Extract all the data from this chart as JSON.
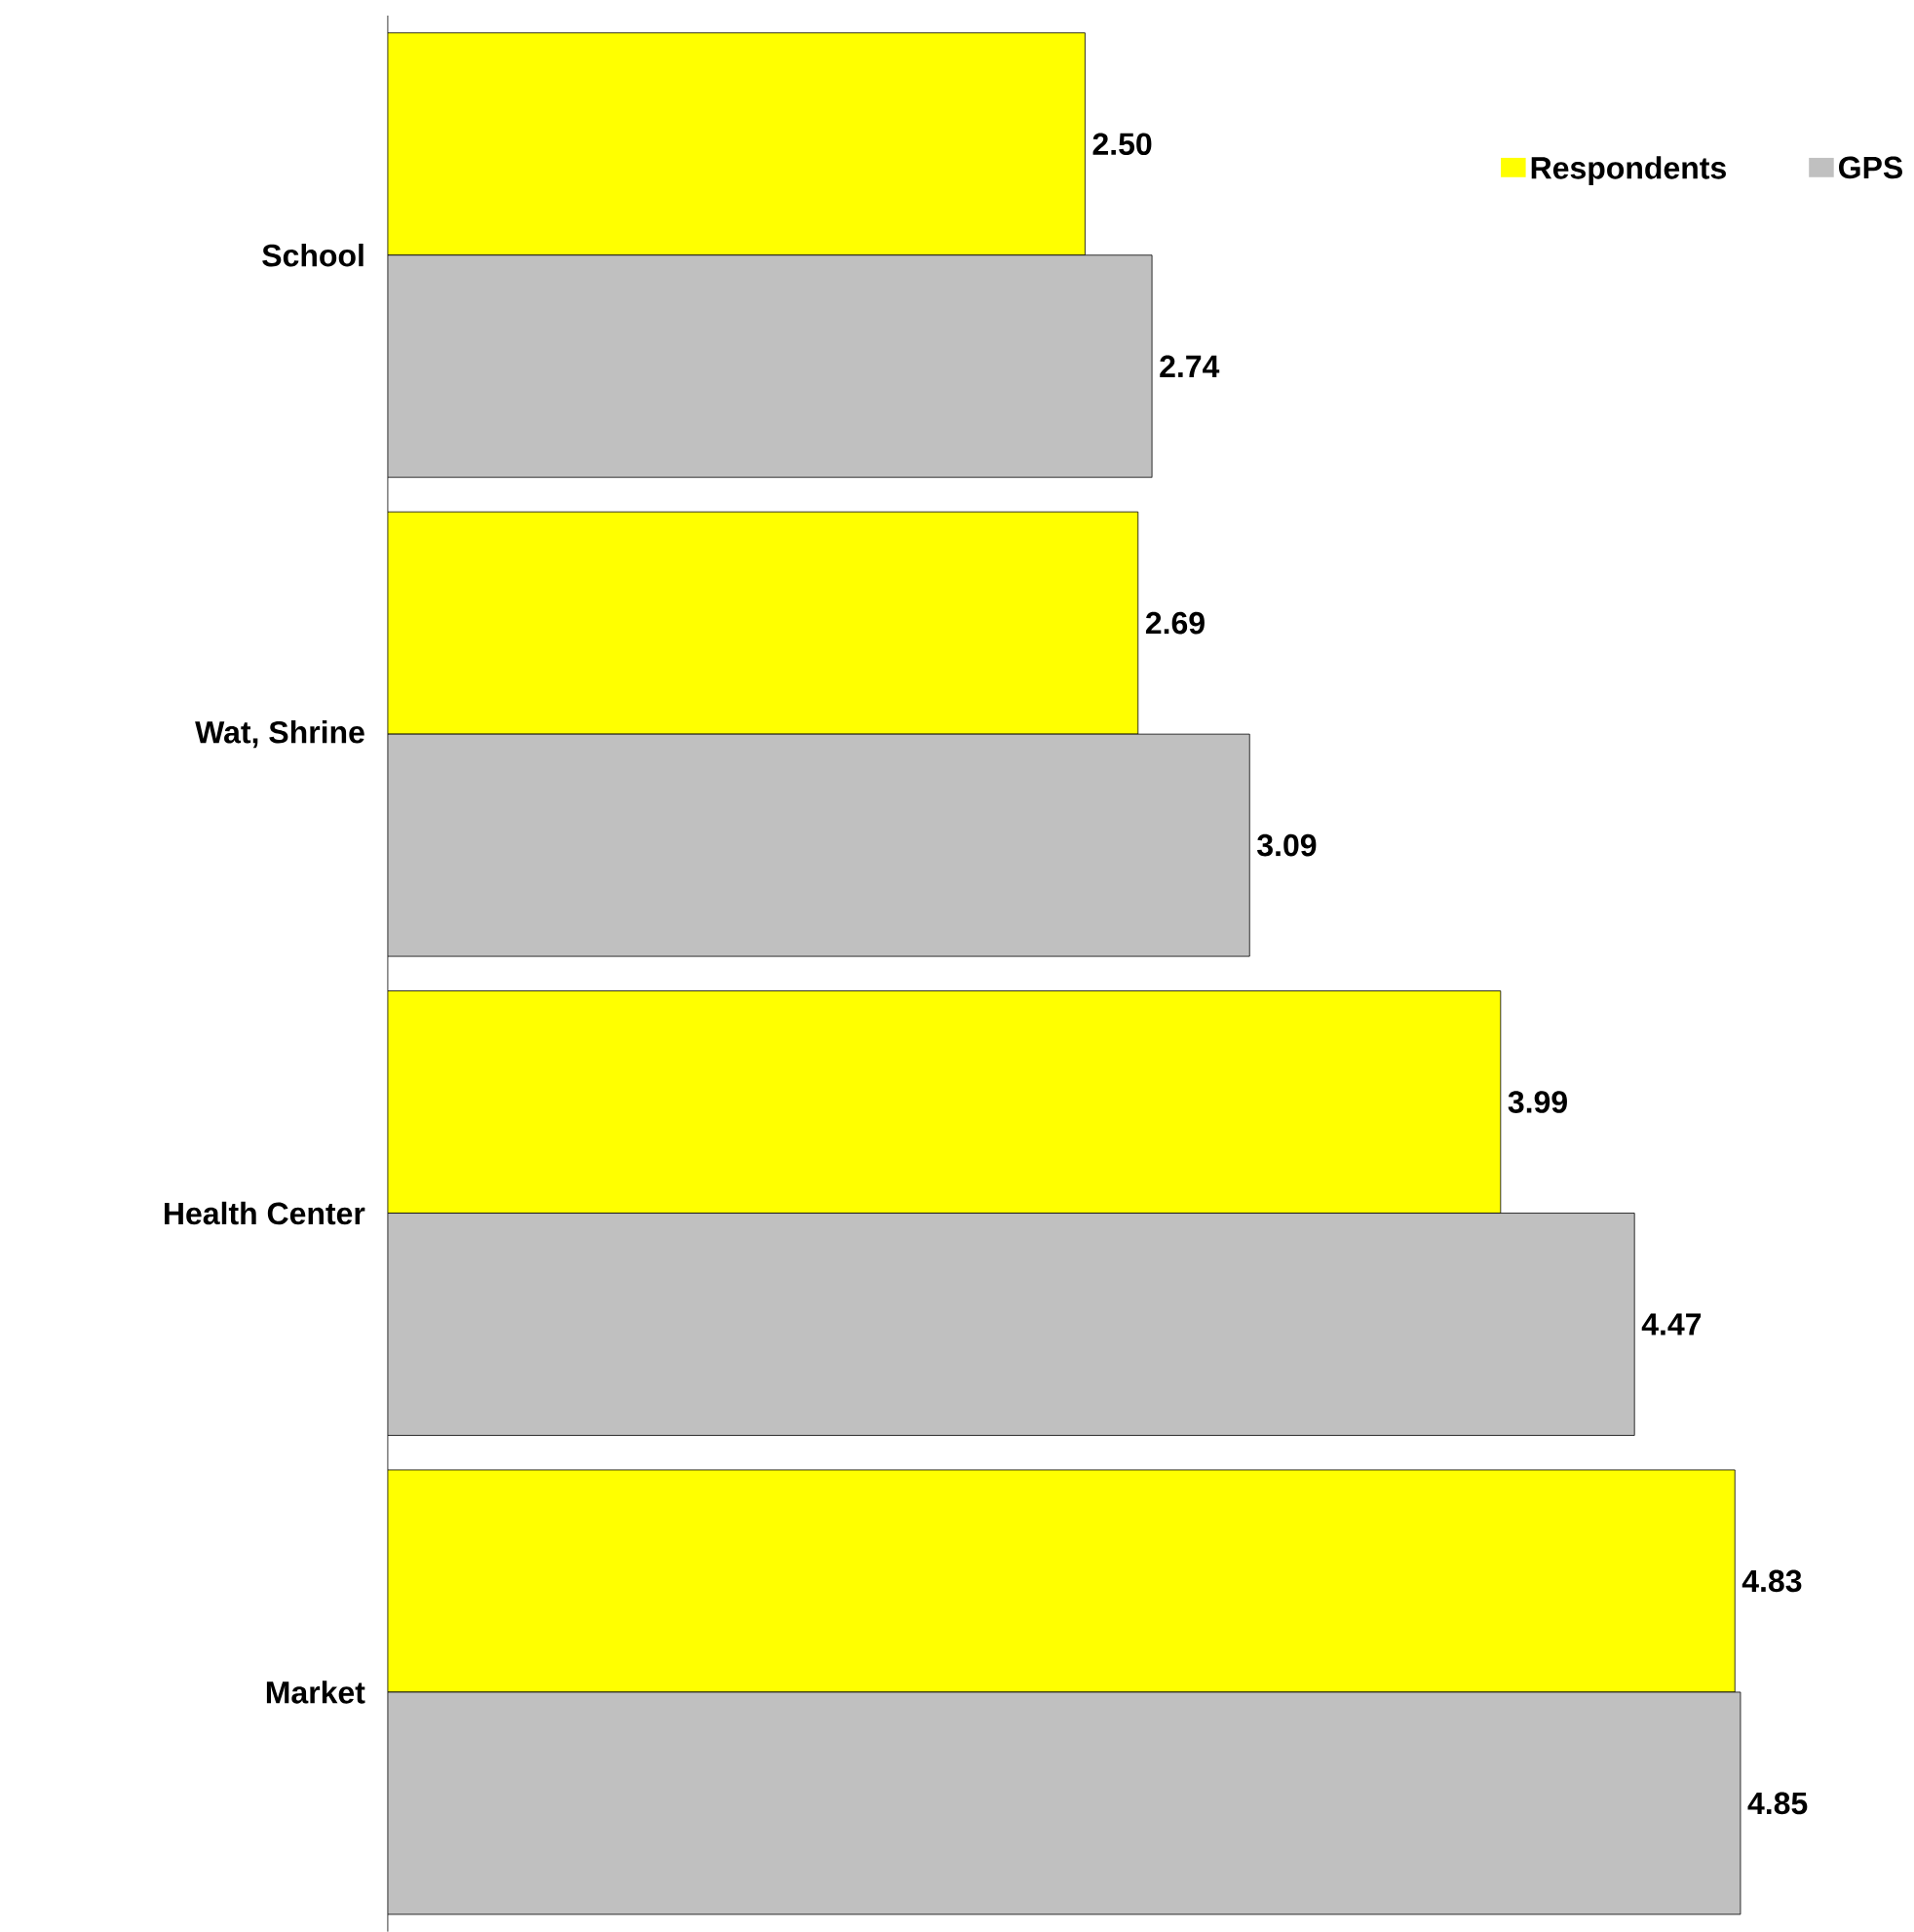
{
  "chart_data": {
    "type": "bar",
    "orientation": "horizontal",
    "categories": [
      "School",
      "Wat, Shrine",
      "Health Center",
      "Market"
    ],
    "series": [
      {
        "name": "Respondents",
        "color": "#ffff00",
        "values": [
          2.5,
          2.69,
          3.99,
          4.83
        ],
        "value_labels": [
          "2.50",
          "2.69",
          "3.99",
          "4.83"
        ]
      },
      {
        "name": "GPS",
        "color": "#c0c0c0",
        "values": [
          2.74,
          3.09,
          4.47,
          4.85
        ],
        "value_labels": [
          "2.74",
          "3.09",
          "4.47",
          "4.85"
        ]
      }
    ],
    "legend": "top right"
  }
}
